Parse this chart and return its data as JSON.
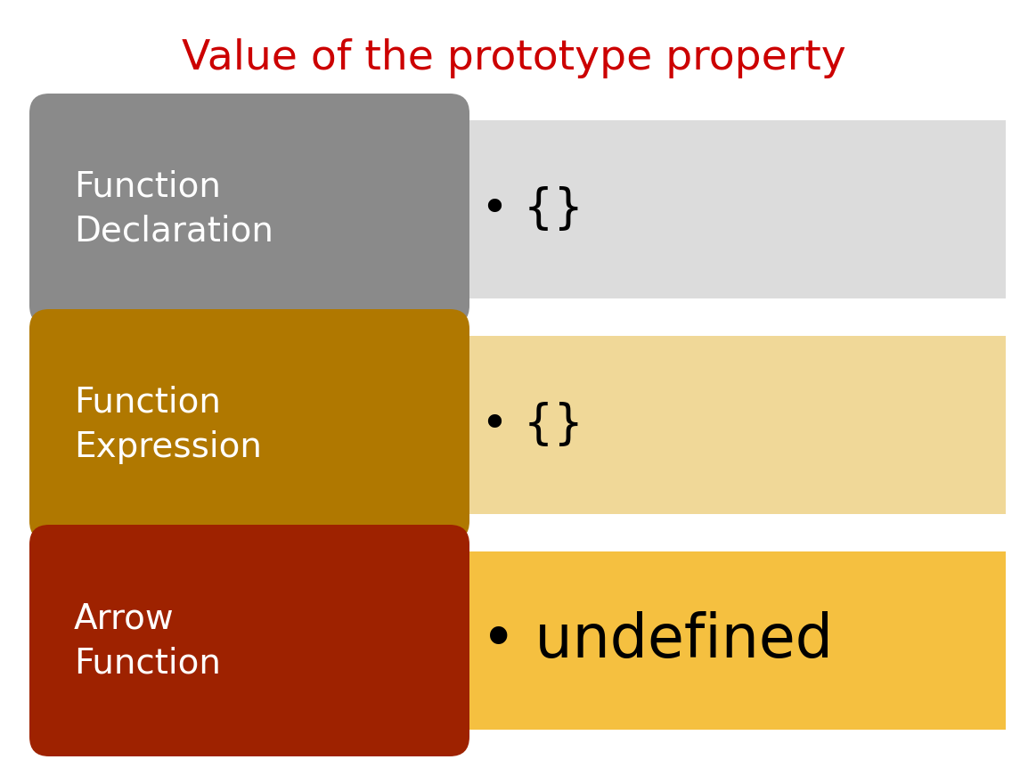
{
  "title": "Value of the prototype property",
  "title_color": "#cc0000",
  "title_fontsize": 34,
  "title_fontweight": "normal",
  "background_color": "#ffffff",
  "rows": [
    {
      "label": "Function\nDeclaration",
      "label_bg": "#8a8a8a",
      "row_bg": "#dcdcdc",
      "value": "• {}",
      "value_fontsize": 38,
      "value_bold": false
    },
    {
      "label": "Function\nExpression",
      "label_bg": "#b07800",
      "row_bg": "#f0d898",
      "value": "• {}",
      "value_fontsize": 38,
      "value_bold": false
    },
    {
      "label": "Arrow\nFunction",
      "label_bg": "#9e2200",
      "row_bg": "#f5c040",
      "value": "• undefined",
      "value_fontsize": 48,
      "value_bold": false
    }
  ],
  "fig_width": 11.54,
  "fig_height": 8.8,
  "dpi": 100
}
